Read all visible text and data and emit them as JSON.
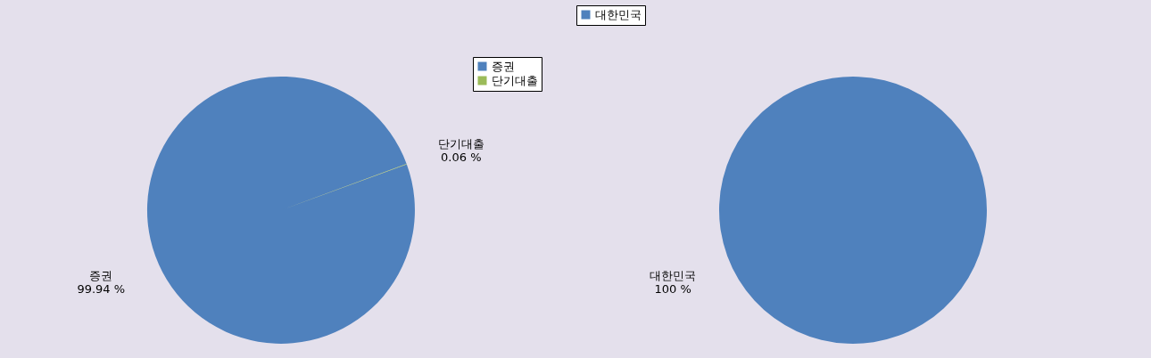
{
  "chart_data": [
    {
      "type": "pie",
      "categories": [
        "증권",
        "단기대출"
      ],
      "values": [
        99.94,
        0.06
      ],
      "colors": [
        "#4f81bd",
        "#9bbb59"
      ],
      "value_labels": [
        "99.94 %",
        "0.06 %"
      ],
      "legend": "top right"
    },
    {
      "type": "pie",
      "categories": [
        "대한민국"
      ],
      "values": [
        100
      ],
      "colors": [
        "#4f81bd"
      ],
      "value_labels": [
        "100 %"
      ],
      "legend": "top"
    }
  ]
}
